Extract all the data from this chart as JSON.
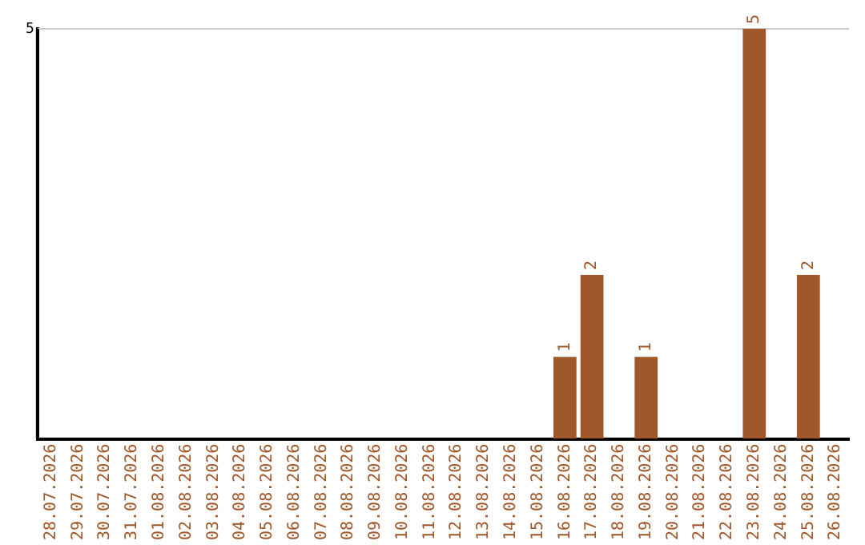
{
  "chart_data": {
    "type": "bar",
    "categories": [
      "28.07.2026",
      "29.07.2026",
      "30.07.2026",
      "31.07.2026",
      "01.08.2026",
      "02.08.2026",
      "03.08.2026",
      "04.08.2026",
      "05.08.2026",
      "06.08.2026",
      "07.08.2026",
      "08.08.2026",
      "09.08.2026",
      "10.08.2026",
      "11.08.2026",
      "12.08.2026",
      "13.08.2026",
      "14.08.2026",
      "15.08.2026",
      "16.08.2026",
      "17.08.2026",
      "18.08.2026",
      "19.08.2026",
      "20.08.2026",
      "21.08.2026",
      "22.08.2026",
      "23.08.2026",
      "24.08.2026",
      "25.08.2026",
      "26.08.2026"
    ],
    "values": [
      null,
      null,
      null,
      null,
      null,
      null,
      null,
      null,
      null,
      null,
      null,
      null,
      null,
      null,
      null,
      null,
      null,
      null,
      null,
      1,
      2,
      null,
      1,
      null,
      null,
      null,
      5,
      null,
      2,
      null
    ],
    "data_labels": true,
    "color": "#a0572a",
    "ylim": [
      0,
      5
    ],
    "yticks": [
      5
    ],
    "ref_lines": [
      {
        "axis": "y",
        "value": 5,
        "color": "#cccccc"
      }
    ],
    "legend": false
  }
}
